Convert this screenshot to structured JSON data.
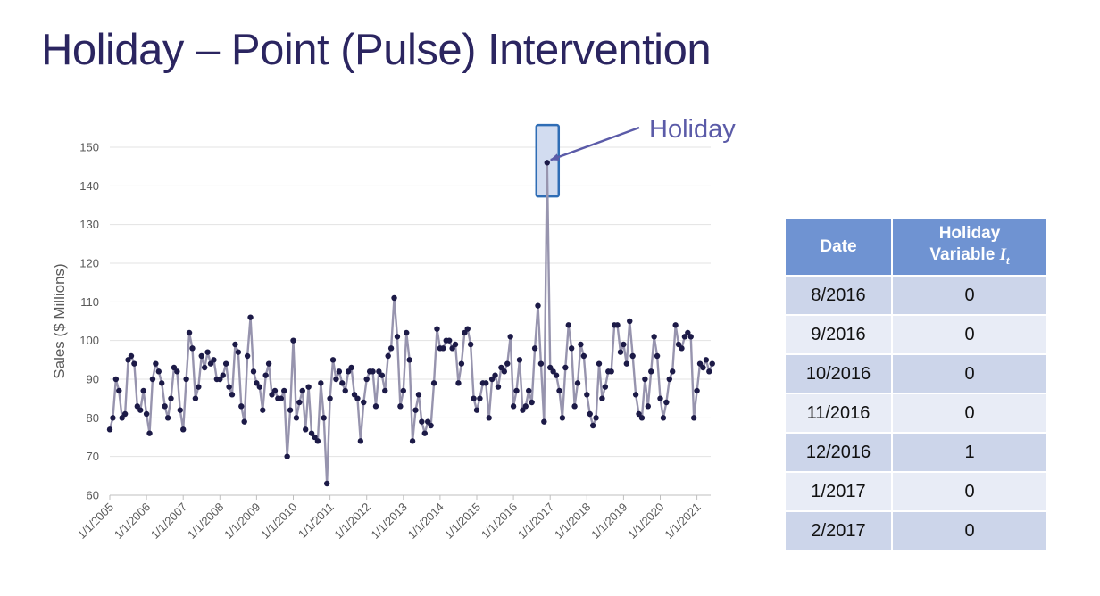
{
  "slide": {
    "title": "Holiday – Point (Pulse) Intervention"
  },
  "chart_data": {
    "type": "line",
    "ylabel": "Sales ($ Millions)",
    "xlabel": "",
    "ylim": [
      60,
      150
    ],
    "yticks": [
      60,
      70,
      80,
      90,
      100,
      110,
      120,
      130,
      140,
      150
    ],
    "x_tick_labels": [
      "1/1/2005",
      "1/1/2006",
      "1/1/2007",
      "1/1/2008",
      "1/1/2009",
      "1/1/2010",
      "1/1/2011",
      "1/1/2012",
      "1/1/2013",
      "1/1/2014",
      "1/1/2015",
      "1/1/2016",
      "1/1/2017",
      "1/1/2018",
      "1/1/2019",
      "1/1/2020",
      "1/1/2021"
    ],
    "x_start": "2005-01",
    "grid": "horizontal",
    "line_color": "#9794ae",
    "marker_color": "#1c1a47",
    "annotation": {
      "text": "Holiday",
      "x": "2016-12",
      "y": 146.5,
      "color": "#5b5ba8"
    },
    "series": [
      {
        "values": [
          77,
          80,
          90,
          87,
          80,
          81,
          95,
          96,
          94,
          83,
          82,
          87,
          81,
          76,
          90,
          94,
          92,
          89,
          83,
          80,
          85,
          93,
          92,
          82,
          77,
          90,
          102,
          98,
          85,
          88,
          96,
          93,
          97,
          94,
          95,
          90,
          90,
          91,
          94,
          88,
          86,
          99,
          97,
          83,
          79,
          96,
          106,
          92,
          89,
          88,
          82,
          91,
          94,
          86,
          87,
          85,
          85,
          87,
          70,
          82,
          100,
          80,
          84,
          87,
          77,
          88,
          76,
          75,
          74,
          89,
          80,
          63,
          85,
          95,
          90,
          92,
          89,
          87,
          92,
          93,
          86,
          85,
          74,
          84,
          90,
          92,
          92,
          83,
          92,
          91,
          87,
          96,
          98,
          111,
          101,
          83,
          87,
          102,
          95,
          74,
          82,
          86,
          79,
          76,
          79,
          78,
          89,
          103,
          98,
          98,
          100,
          100,
          98,
          99,
          89,
          94,
          102,
          103,
          99,
          85,
          82,
          85,
          89,
          89,
          80,
          90,
          91,
          88,
          93,
          92,
          94,
          101,
          83,
          87,
          95,
          82,
          83,
          87,
          84,
          98,
          109,
          94,
          79,
          146,
          93,
          92,
          91,
          87,
          80,
          93,
          104,
          98,
          83,
          89,
          99,
          96,
          86,
          81,
          78,
          80,
          94,
          85,
          88,
          92,
          92,
          104,
          104,
          97,
          99,
          94,
          105,
          96,
          86,
          81,
          80,
          90,
          83,
          92,
          101,
          96,
          85,
          80,
          84,
          90,
          92,
          104,
          99,
          98,
          101,
          102,
          101,
          80,
          87,
          94,
          93,
          95,
          92,
          94
        ]
      }
    ]
  },
  "table": {
    "headers": {
      "date": "Date",
      "variable_line1": "Holiday",
      "variable_line2": "Variable",
      "symbol": "I",
      "subscript": "t"
    },
    "rows": [
      {
        "date": "8/2016",
        "value": "0"
      },
      {
        "date": "9/2016",
        "value": "0"
      },
      {
        "date": "10/2016",
        "value": "0"
      },
      {
        "date": "11/2016",
        "value": "0"
      },
      {
        "date": "12/2016",
        "value": "1"
      },
      {
        "date": "1/2017",
        "value": "0"
      },
      {
        "date": "2/2017",
        "value": "0"
      }
    ]
  }
}
